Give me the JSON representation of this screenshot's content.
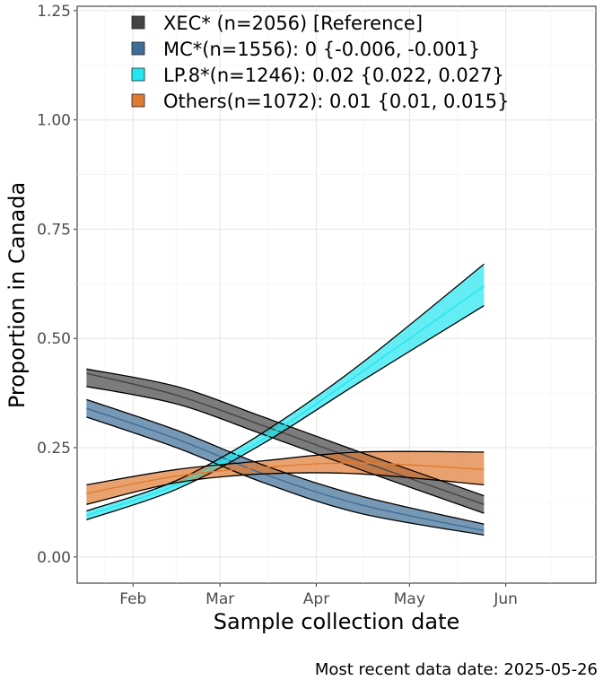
{
  "chart_data": {
    "type": "line",
    "title": "",
    "xlabel": "Sample collection date",
    "ylabel": "Proportion in Canada",
    "x_ticks": [
      "Feb",
      "Mar",
      "Apr",
      "May",
      "Jun"
    ],
    "x_tick_dates": [
      "2025-02-01",
      "2025-03-01",
      "2025-04-01",
      "2025-05-01",
      "2025-06-01"
    ],
    "xlim": [
      "2025-01-14",
      "2025-06-30"
    ],
    "y_ticks": [
      "0.00",
      "0.25",
      "0.50",
      "0.75",
      "1.00",
      "1.25"
    ],
    "ylim": [
      -0.06,
      1.26
    ],
    "grid": true,
    "legend_position": "top-left, inside plot",
    "series": [
      {
        "name": "XEC* (n=2056)  [Reference]",
        "color": "#444444",
        "x": [
          "2025-01-17",
          "2025-02-15",
          "2025-03-15",
          "2025-04-15",
          "2025-05-25"
        ],
        "y": [
          0.42,
          0.37,
          0.3,
          0.22,
          0.12
        ],
        "band_low": [
          0.39,
          0.35,
          0.28,
          0.2,
          0.1
        ],
        "band_high": [
          0.43,
          0.39,
          0.32,
          0.24,
          0.14
        ]
      },
      {
        "name": "MC*(n=1556): 0 {-0.006, -0.001}",
        "color": "#3F6E97",
        "x": [
          "2025-01-17",
          "2025-02-15",
          "2025-03-15",
          "2025-04-15",
          "2025-05-25"
        ],
        "y": [
          0.34,
          0.27,
          0.19,
          0.12,
          0.06
        ],
        "band_low": [
          0.32,
          0.25,
          0.17,
          0.1,
          0.05
        ],
        "band_high": [
          0.36,
          0.29,
          0.21,
          0.14,
          0.075
        ]
      },
      {
        "name": "LP.8*(n=1246): 0.02 {0.022, 0.027}",
        "color": "#22E6F0",
        "x": [
          "2025-01-17",
          "2025-02-15",
          "2025-03-15",
          "2025-04-15",
          "2025-05-25"
        ],
        "y": [
          0.095,
          0.165,
          0.27,
          0.42,
          0.62
        ],
        "band_low": [
          0.085,
          0.155,
          0.26,
          0.4,
          0.575
        ],
        "band_high": [
          0.105,
          0.175,
          0.285,
          0.44,
          0.67
        ]
      },
      {
        "name": "Others(n=1072): 0.01 {0.01, 0.015}",
        "color": "#E07B32",
        "x": [
          "2025-01-17",
          "2025-02-15",
          "2025-03-15",
          "2025-04-15",
          "2025-05-25"
        ],
        "y": [
          0.145,
          0.185,
          0.205,
          0.215,
          0.2
        ],
        "band_low": [
          0.12,
          0.17,
          0.19,
          0.19,
          0.165
        ],
        "band_high": [
          0.165,
          0.2,
          0.22,
          0.24,
          0.24
        ]
      }
    ]
  },
  "caption": "Most recent data date: 2025-05-26"
}
